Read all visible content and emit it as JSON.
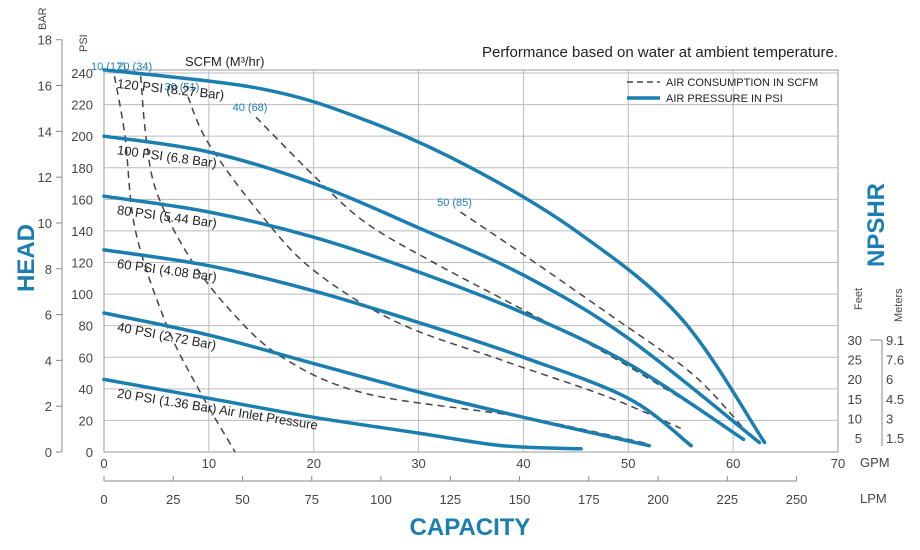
{
  "chart_data": {
    "type": "line",
    "title": "Performance based on water at ambient temperature.",
    "xlabel": "CAPACITY",
    "ylabel": "HEAD",
    "y2label": "NPSHR",
    "x_units": {
      "gpm": "GPM",
      "lpm": "LPM"
    },
    "y_units": {
      "psi": "PSI",
      "bar": "BAR"
    },
    "scfm_axis_label": "SCFM (M³/hr)",
    "npshr_units": {
      "feet": "Feet",
      "meters": "Meters"
    },
    "xlim_gpm": [
      0,
      70
    ],
    "ylim_psi": [
      0,
      240
    ],
    "grid": true,
    "legend_position": "top-right",
    "legend": [
      {
        "name": "AIR CONSUMPTION IN SCFM",
        "style": "dashed",
        "color": "#444444"
      },
      {
        "name": "AIR PRESSURE IN PSI",
        "style": "solid",
        "color": "#1a7fb0"
      }
    ],
    "colors": {
      "pressure": "#1a7fb0",
      "air": "#444444",
      "grid": "#bbbbbb"
    },
    "ticks": {
      "gpm": [
        "0",
        "10",
        "20",
        "30",
        "40",
        "50",
        "60",
        "70"
      ],
      "lpm": [
        "0",
        "25",
        "50",
        "75",
        "100",
        "125",
        "150",
        "175",
        "200",
        "225",
        "250"
      ],
      "psi": [
        "0",
        "20",
        "40",
        "60",
        "80",
        "100",
        "120",
        "140",
        "160",
        "180",
        "200",
        "220",
        "240"
      ],
      "bar": [
        "0",
        "2",
        "4",
        "6",
        "8",
        "10",
        "12",
        "14",
        "16",
        "18"
      ],
      "npshr_feet": [
        "5",
        "10",
        "15",
        "20",
        "25",
        "30"
      ],
      "npshr_meters": [
        "1.5",
        "3",
        "4.5",
        "6",
        "7.6",
        "9.1"
      ]
    },
    "pressure_series": [
      {
        "label": "120 PSI (8.27 Bar)",
        "points": [
          [
            0,
            242
          ],
          [
            15,
            230
          ],
          [
            25,
            210
          ],
          [
            35,
            180
          ],
          [
            45,
            140
          ],
          [
            55,
            85
          ],
          [
            63,
            6
          ]
        ]
      },
      {
        "label": "100 PSI (6.8 Bar)",
        "points": [
          [
            0,
            200
          ],
          [
            10,
            190
          ],
          [
            20,
            170
          ],
          [
            30,
            142
          ],
          [
            40,
            112
          ],
          [
            50,
            72
          ],
          [
            62.5,
            6
          ]
        ]
      },
      {
        "label": "80 PSI (5.44 Bar)",
        "points": [
          [
            0,
            162
          ],
          [
            10,
            152
          ],
          [
            20,
            136
          ],
          [
            30,
            114
          ],
          [
            40,
            88
          ],
          [
            50,
            56
          ],
          [
            61,
            8
          ]
        ]
      },
      {
        "label": "60 PSI (4.08 Bar)",
        "points": [
          [
            0,
            128
          ],
          [
            10,
            118
          ],
          [
            20,
            102
          ],
          [
            30,
            82
          ],
          [
            40,
            60
          ],
          [
            50,
            34
          ],
          [
            56,
            4
          ]
        ]
      },
      {
        "label": "40 PSI (2.72 Bar)",
        "points": [
          [
            0,
            88
          ],
          [
            10,
            74
          ],
          [
            20,
            56
          ],
          [
            30,
            38
          ],
          [
            40,
            22
          ],
          [
            52,
            4
          ]
        ]
      },
      {
        "label": "20 PSI (1.36 Bar) Air Inlet Pressure",
        "points": [
          [
            0,
            46
          ],
          [
            10,
            34
          ],
          [
            20,
            22
          ],
          [
            30,
            12
          ],
          [
            38,
            4
          ],
          [
            45.5,
            2
          ]
        ]
      }
    ],
    "air_series": [
      {
        "label": "10 (17)",
        "points": [
          [
            1,
            238
          ],
          [
            2,
            200
          ],
          [
            3,
            140
          ],
          [
            6,
            80
          ],
          [
            9,
            40
          ],
          [
            12.5,
            0
          ]
        ]
      },
      {
        "label": "20 (34)",
        "points": [
          [
            3.5,
            238
          ],
          [
            4,
            200
          ],
          [
            5,
            165
          ],
          [
            8,
            125
          ],
          [
            12,
            90
          ],
          [
            17,
            60
          ],
          [
            25,
            37
          ],
          [
            40,
            22
          ],
          [
            52,
            5
          ]
        ]
      },
      {
        "label": "30 (51)",
        "points": [
          [
            8,
            225
          ],
          [
            10,
            195
          ],
          [
            15,
            150
          ],
          [
            20,
            115
          ],
          [
            28,
            82
          ],
          [
            38,
            58
          ],
          [
            48,
            35
          ],
          [
            55,
            15
          ]
        ]
      },
      {
        "label": "40 (68)",
        "points": [
          [
            14.5,
            212
          ],
          [
            20,
            175
          ],
          [
            25,
            145
          ],
          [
            32,
            118
          ],
          [
            40,
            90
          ],
          [
            48,
            62
          ],
          [
            56,
            30
          ]
        ]
      },
      {
        "label": "50 (85)",
        "points": [
          [
            34,
            152
          ],
          [
            40,
            125
          ],
          [
            48,
            88
          ],
          [
            56,
            50
          ],
          [
            61,
            15
          ]
        ]
      }
    ]
  }
}
